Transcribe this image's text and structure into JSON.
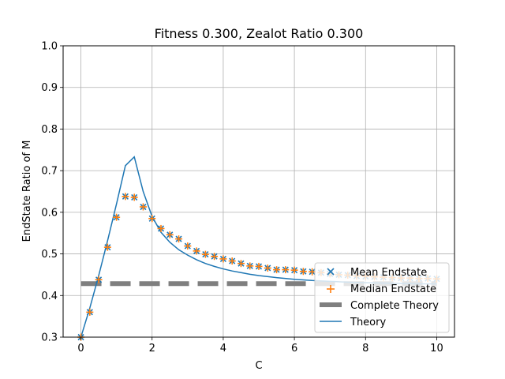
{
  "chart_data": {
    "type": "line",
    "title": "Fitness 0.300, Zealot Ratio 0.300",
    "xlabel": "C",
    "ylabel": "EndState Ratio of M",
    "xlim": [
      -0.5,
      10.5
    ],
    "ylim": [
      0.3,
      1.0
    ],
    "xticks": [
      0,
      2,
      4,
      6,
      8,
      10
    ],
    "yticks": [
      0.3,
      0.4,
      0.5,
      0.6,
      0.7,
      0.8,
      0.9,
      1.0
    ],
    "ytick_labels": [
      "0.3",
      "0.4",
      "0.5",
      "0.6",
      "0.7",
      "0.8",
      "0.9",
      "1.0"
    ],
    "grid": true,
    "legend_position": "lower-right",
    "colors": {
      "blue": "#1f77b4",
      "orange": "#ff7f0e",
      "gray": "#7f7f7f"
    },
    "series": [
      {
        "name": "Mean Endstate",
        "marker": "x",
        "color": "#1f77b4",
        "x": [
          0,
          0.25,
          0.5,
          0.75,
          1.0,
          1.25,
          1.5,
          1.75,
          2.0,
          2.25,
          2.5,
          2.75,
          3.0,
          3.25,
          3.5,
          3.75,
          4.0,
          4.25,
          4.5,
          4.75,
          5.0,
          5.25,
          5.5,
          5.75,
          6.0,
          6.25,
          6.5,
          6.75,
          7.0,
          7.25,
          7.5,
          7.75,
          8.0,
          8.25,
          8.5,
          8.75,
          9.0,
          9.25,
          9.5,
          9.75,
          10.0
        ],
        "y": [
          0.3,
          0.36,
          0.438,
          0.516,
          0.588,
          0.638,
          0.636,
          0.613,
          0.585,
          0.561,
          0.546,
          0.536,
          0.519,
          0.507,
          0.499,
          0.494,
          0.488,
          0.483,
          0.477,
          0.471,
          0.47,
          0.466,
          0.462,
          0.462,
          0.461,
          0.458,
          0.457,
          0.455,
          0.452,
          0.45,
          0.449,
          0.447,
          0.446,
          0.445,
          0.444,
          0.443,
          0.442,
          0.442,
          0.441,
          0.441,
          0.44
        ]
      },
      {
        "name": "Median Endstate",
        "marker": "+",
        "color": "#ff7f0e",
        "x": [
          0,
          0.25,
          0.5,
          0.75,
          1.0,
          1.25,
          1.5,
          1.75,
          2.0,
          2.25,
          2.5,
          2.75,
          3.0,
          3.25,
          3.5,
          3.75,
          4.0,
          4.25,
          4.5,
          4.75,
          5.0,
          5.25,
          5.5,
          5.75,
          6.0,
          6.25,
          6.5,
          6.75,
          7.0,
          7.25,
          7.5,
          7.75,
          8.0,
          8.25,
          8.5,
          8.75,
          9.0,
          9.25,
          9.5,
          9.75,
          10.0
        ],
        "y": [
          0.3,
          0.36,
          0.438,
          0.516,
          0.588,
          0.638,
          0.636,
          0.613,
          0.585,
          0.561,
          0.546,
          0.536,
          0.519,
          0.507,
          0.499,
          0.494,
          0.488,
          0.483,
          0.477,
          0.471,
          0.47,
          0.466,
          0.462,
          0.462,
          0.461,
          0.458,
          0.457,
          0.455,
          0.452,
          0.45,
          0.449,
          0.447,
          0.446,
          0.445,
          0.444,
          0.443,
          0.442,
          0.442,
          0.441,
          0.441,
          0.44
        ]
      },
      {
        "name": "Complete Theory",
        "style": "dashed",
        "color": "#7f7f7f",
        "x": [
          0,
          10
        ],
        "y": [
          0.4286,
          0.4286
        ]
      },
      {
        "name": "Theory",
        "style": "solid",
        "color": "#1f77b4",
        "x": [
          0,
          0.25,
          0.5,
          0.75,
          1.0,
          1.25,
          1.5,
          1.75,
          2.0,
          2.25,
          2.5,
          2.75,
          3.0,
          3.25,
          3.5,
          3.75,
          4.0,
          4.25,
          4.5,
          4.75,
          5.0,
          5.5,
          6.0,
          6.5,
          7.0,
          7.5,
          8.0,
          8.5,
          9.0,
          9.5,
          10.0
        ],
        "y": [
          0.3,
          0.37,
          0.448,
          0.532,
          0.62,
          0.712,
          0.733,
          0.65,
          0.59,
          0.552,
          0.528,
          0.51,
          0.497,
          0.486,
          0.477,
          0.47,
          0.464,
          0.459,
          0.455,
          0.451,
          0.448,
          0.443,
          0.439,
          0.436,
          0.434,
          0.432,
          0.431,
          0.43,
          0.429,
          0.428,
          0.428
        ]
      }
    ]
  }
}
